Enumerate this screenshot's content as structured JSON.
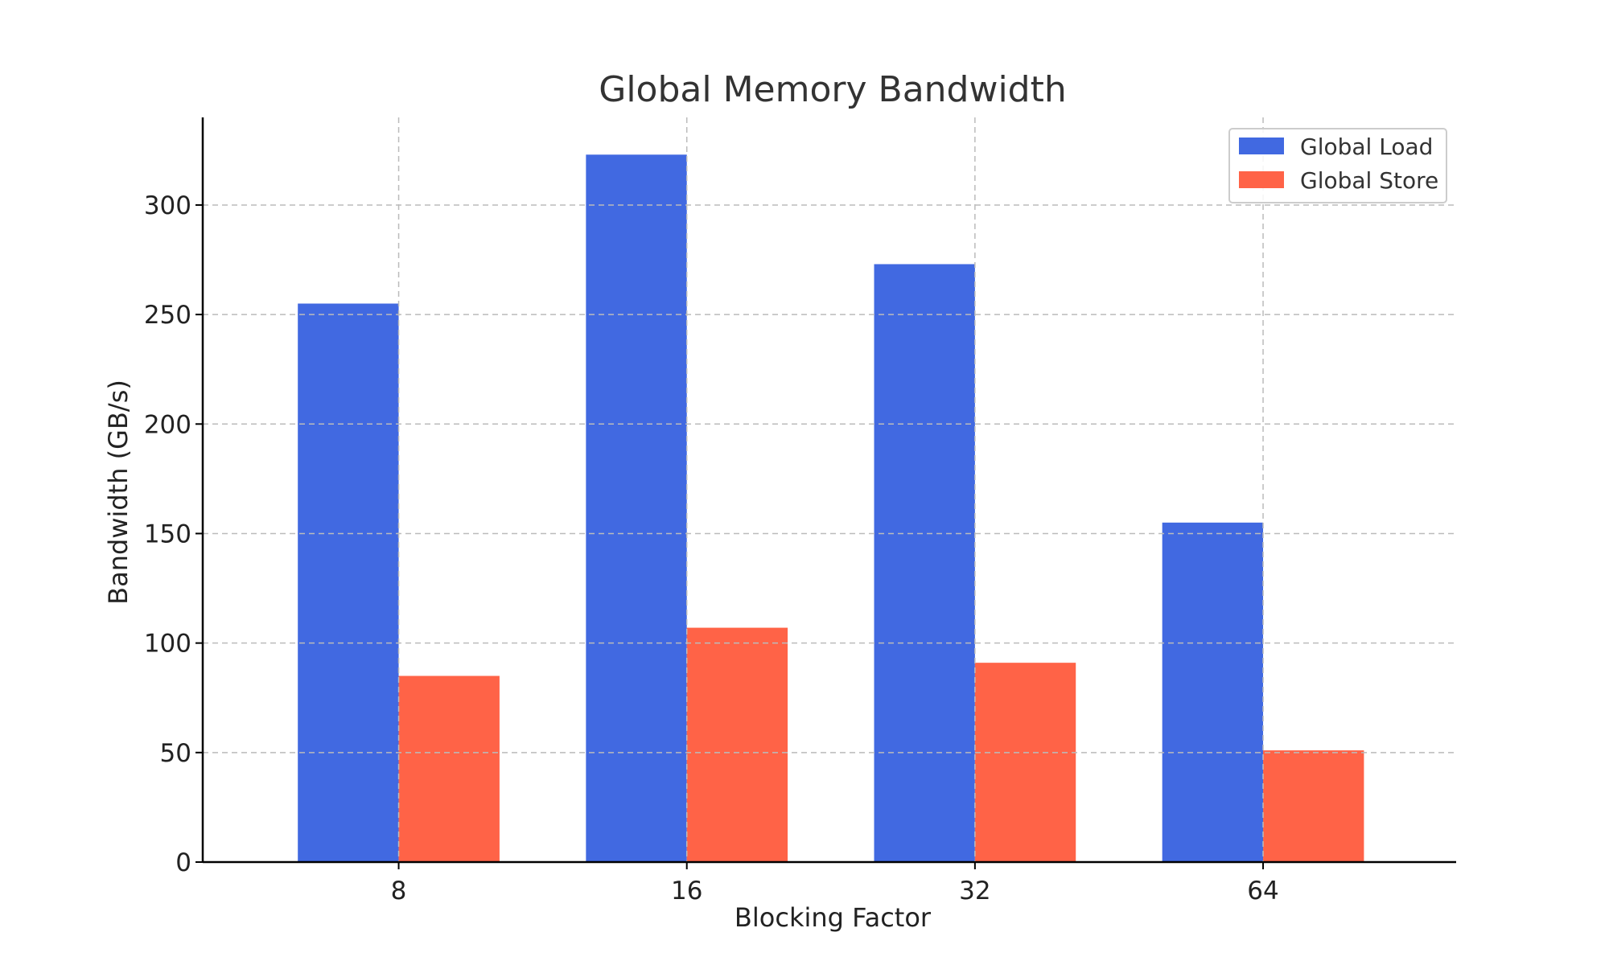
{
  "chart_data": {
    "type": "bar",
    "title": "Global Memory Bandwidth",
    "xlabel": "Blocking Factor",
    "ylabel": "Bandwidth (GB/s)",
    "categories": [
      "8",
      "16",
      "32",
      "64"
    ],
    "series": [
      {
        "name": "Global Load",
        "values": [
          255,
          323,
          273,
          155
        ],
        "color": "#4169E1"
      },
      {
        "name": "Global Store",
        "values": [
          85,
          107,
          91,
          51
        ],
        "color": "#FF6347"
      }
    ],
    "ylim": [
      0,
      340
    ],
    "yticks": [
      0,
      50,
      100,
      150,
      200,
      250,
      300
    ],
    "grid": true,
    "legend_position": "top-right"
  }
}
